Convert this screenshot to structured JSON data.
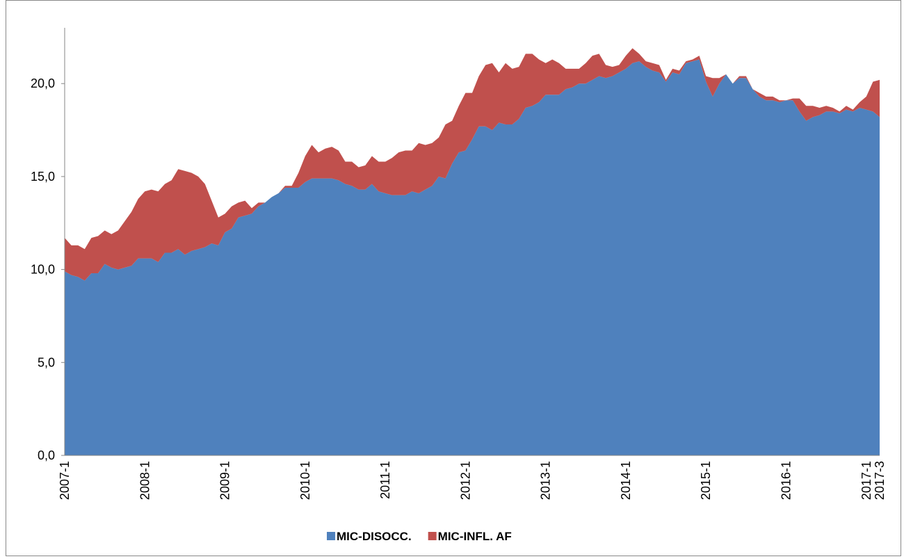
{
  "chart_data": {
    "type": "stacked-area",
    "categories": [
      "2007-1",
      null,
      null,
      null,
      null,
      null,
      null,
      null,
      null,
      null,
      null,
      null,
      "2008-1",
      null,
      null,
      null,
      null,
      null,
      null,
      null,
      null,
      null,
      null,
      null,
      "2009-1",
      null,
      null,
      null,
      null,
      null,
      null,
      null,
      null,
      null,
      null,
      null,
      "2010-1",
      null,
      null,
      null,
      null,
      null,
      null,
      null,
      null,
      null,
      null,
      null,
      "2011-1",
      null,
      null,
      null,
      null,
      null,
      null,
      null,
      null,
      null,
      null,
      null,
      "2012-1",
      null,
      null,
      null,
      null,
      null,
      null,
      null,
      null,
      null,
      null,
      null,
      "2013-1",
      null,
      null,
      null,
      null,
      null,
      null,
      null,
      null,
      null,
      null,
      null,
      "2014-1",
      null,
      null,
      null,
      null,
      null,
      null,
      null,
      null,
      null,
      null,
      null,
      "2015-1",
      null,
      null,
      null,
      null,
      null,
      null,
      null,
      null,
      null,
      null,
      null,
      "2016-1",
      null,
      null,
      null,
      null,
      null,
      null,
      null,
      null,
      null,
      null,
      null,
      "2017-1",
      null,
      "2017-3"
    ],
    "series": [
      {
        "name": "MIC-DISOCC.",
        "color": "#4f81bd",
        "values": [
          9.9,
          9.7,
          9.6,
          9.4,
          9.8,
          9.8,
          10.3,
          10.1,
          10.0,
          10.1,
          10.2,
          10.6,
          10.6,
          10.6,
          10.4,
          10.9,
          10.9,
          11.1,
          10.8,
          11.0,
          11.1,
          11.2,
          11.4,
          11.3,
          12.0,
          12.2,
          12.8,
          12.9,
          13.0,
          13.4,
          13.6,
          13.9,
          14.1,
          14.4,
          14.4,
          14.4,
          14.7,
          14.9,
          14.9,
          14.9,
          14.9,
          14.8,
          14.6,
          14.5,
          14.3,
          14.3,
          14.6,
          14.2,
          14.1,
          14.0,
          14.0,
          14.0,
          14.2,
          14.1,
          14.3,
          14.5,
          15.0,
          14.9,
          15.7,
          16.3,
          16.4,
          17.0,
          17.7,
          17.7,
          17.5,
          17.9,
          17.8,
          17.8,
          18.1,
          18.7,
          18.8,
          19.0,
          19.4,
          19.4,
          19.4,
          19.7,
          19.8,
          20.0,
          20.0,
          20.2,
          20.4,
          20.3,
          20.4,
          20.6,
          20.8,
          21.1,
          21.2,
          20.9,
          20.7,
          20.6,
          20.1,
          20.6,
          20.5,
          21.1,
          21.2,
          21.3,
          20.1,
          19.3,
          20.0,
          20.5,
          20.0,
          20.3,
          20.3,
          19.7,
          19.3,
          19.1,
          19.1,
          19.0,
          19.1,
          19.1,
          18.5,
          18.0,
          18.2,
          18.3,
          18.5,
          18.5,
          18.4,
          18.6,
          18.5,
          18.7,
          18.6,
          18.5,
          18.2
        ]
      },
      {
        "name": "MIC-INFL. AF",
        "color": "#c0504d",
        "values": [
          1.8,
          1.6,
          1.7,
          1.7,
          1.9,
          2.0,
          1.8,
          1.8,
          2.1,
          2.5,
          2.9,
          3.2,
          3.6,
          3.7,
          3.8,
          3.7,
          3.9,
          4.3,
          4.5,
          4.2,
          3.9,
          3.4,
          2.3,
          1.5,
          1.0,
          1.2,
          0.8,
          0.8,
          0.3,
          0.2,
          0.0,
          0.0,
          0.0,
          0.1,
          0.1,
          0.8,
          1.4,
          1.8,
          1.4,
          1.6,
          1.7,
          1.6,
          1.2,
          1.3,
          1.2,
          1.3,
          1.5,
          1.6,
          1.7,
          2.0,
          2.3,
          2.4,
          2.2,
          2.7,
          2.4,
          2.3,
          2.1,
          2.9,
          2.3,
          2.5,
          3.1,
          2.5,
          2.7,
          3.3,
          3.6,
          2.7,
          3.3,
          3.0,
          2.8,
          2.9,
          2.8,
          2.3,
          1.7,
          1.9,
          1.7,
          1.1,
          1.0,
          0.8,
          1.1,
          1.3,
          1.2,
          0.7,
          0.5,
          0.4,
          0.7,
          0.8,
          0.4,
          0.3,
          0.4,
          0.4,
          0.1,
          0.2,
          0.2,
          0.1,
          0.1,
          0.2,
          0.3,
          1.0,
          0.3,
          0.0,
          0.0,
          0.1,
          0.1,
          0.0,
          0.2,
          0.2,
          0.2,
          0.1,
          0.0,
          0.1,
          0.7,
          0.8,
          0.6,
          0.4,
          0.3,
          0.2,
          0.1,
          0.2,
          0.1,
          0.3,
          0.7,
          1.6,
          2.0
        ]
      }
    ],
    "ylim": [
      0,
      23
    ],
    "yticks": [
      {
        "value": 0,
        "label": "0,0"
      },
      {
        "value": 5,
        "label": "5,0"
      },
      {
        "value": 10,
        "label": "10,0"
      },
      {
        "value": 15,
        "label": "15,0"
      },
      {
        "value": 20,
        "label": "20,0"
      }
    ],
    "legend": "bottom"
  }
}
